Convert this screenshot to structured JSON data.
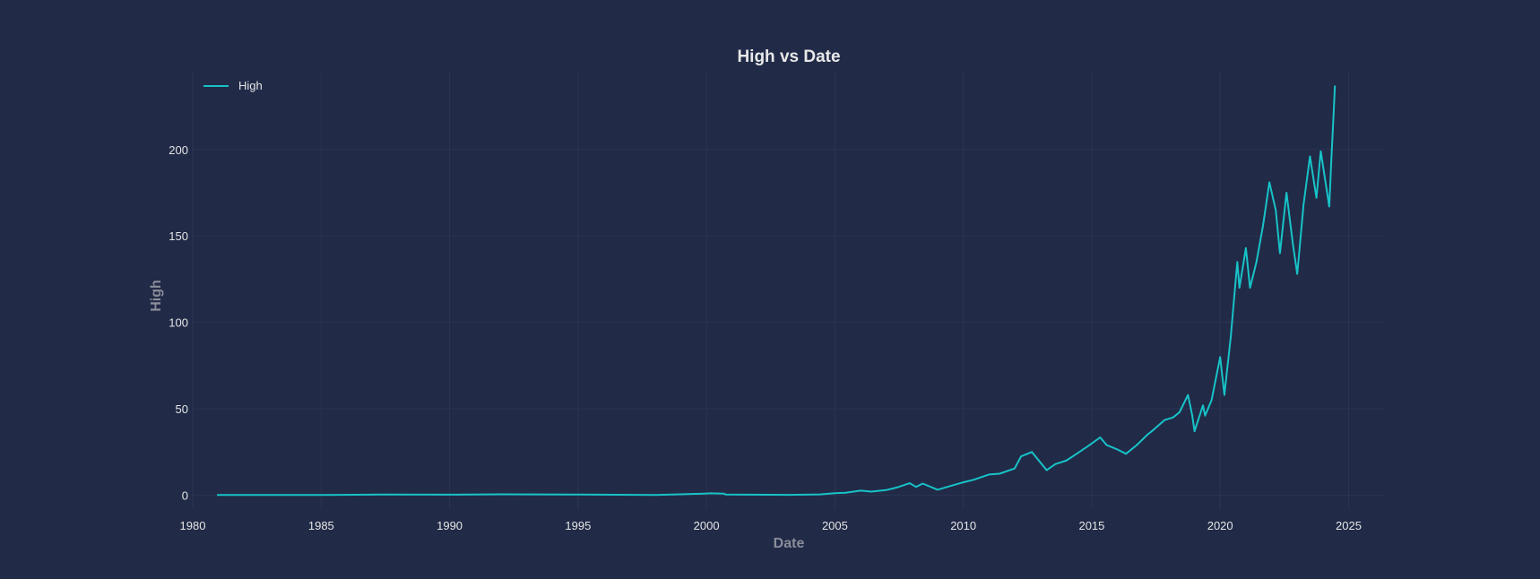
{
  "chart_data": {
    "type": "line",
    "title": "High vs Date",
    "xlabel": "Date",
    "ylabel": "High",
    "xlim": [
      "1980-01-01",
      "2026-06-01"
    ],
    "ylim": [
      -8,
      245
    ],
    "x_ticks": [
      "1980",
      "1985",
      "1990",
      "1995",
      "2000",
      "2005",
      "2010",
      "2015",
      "2020",
      "2025"
    ],
    "y_ticks": [
      0,
      50,
      100,
      150,
      200
    ],
    "grid": true,
    "legend_position": "top-left",
    "line_color": "#17c3c8",
    "series": [
      {
        "name": "High",
        "points": [
          [
            "1980-12-12",
            0.13
          ],
          [
            "1983-01-01",
            0.15
          ],
          [
            "1985-01-01",
            0.12
          ],
          [
            "1987-06-01",
            0.45
          ],
          [
            "1990-01-01",
            0.35
          ],
          [
            "1992-01-01",
            0.55
          ],
          [
            "1995-01-01",
            0.4
          ],
          [
            "1998-01-01",
            0.2
          ],
          [
            "1999-12-01",
            0.95
          ],
          [
            "2000-03-01",
            1.1
          ],
          [
            "2000-09-01",
            0.95
          ],
          [
            "2000-10-01",
            0.45
          ],
          [
            "2003-04-01",
            0.25
          ],
          [
            "2004-06-01",
            0.5
          ],
          [
            "2005-01-01",
            1.2
          ],
          [
            "2005-06-01",
            1.5
          ],
          [
            "2006-01-01",
            2.7
          ],
          [
            "2006-06-01",
            2.1
          ],
          [
            "2007-01-01",
            3.0
          ],
          [
            "2007-06-01",
            4.5
          ],
          [
            "2007-12-01",
            7.0
          ],
          [
            "2008-03-01",
            4.8
          ],
          [
            "2008-06-01",
            6.8
          ],
          [
            "2009-01-01",
            3.2
          ],
          [
            "2009-06-01",
            5.0
          ],
          [
            "2010-01-01",
            7.5
          ],
          [
            "2010-06-01",
            9.0
          ],
          [
            "2011-01-01",
            12.0
          ],
          [
            "2011-06-01",
            12.5
          ],
          [
            "2012-01-01",
            15.5
          ],
          [
            "2012-04-01",
            22.5
          ],
          [
            "2012-09-01",
            25.0
          ],
          [
            "2013-04-01",
            14.5
          ],
          [
            "2013-08-01",
            18.0
          ],
          [
            "2014-01-01",
            20.0
          ],
          [
            "2014-06-01",
            24.0
          ],
          [
            "2014-12-01",
            29.0
          ],
          [
            "2015-05-01",
            33.5
          ],
          [
            "2015-08-01",
            29.0
          ],
          [
            "2016-01-01",
            26.5
          ],
          [
            "2016-05-01",
            24.0
          ],
          [
            "2016-10-01",
            29.0
          ],
          [
            "2017-03-01",
            35.0
          ],
          [
            "2017-06-01",
            38.0
          ],
          [
            "2017-11-01",
            43.5
          ],
          [
            "2018-03-01",
            45.0
          ],
          [
            "2018-06-01",
            48.0
          ],
          [
            "2018-10-01",
            58.0
          ],
          [
            "2018-12-01",
            46.0
          ],
          [
            "2019-01-01",
            37.0
          ],
          [
            "2019-05-01",
            52.0
          ],
          [
            "2019-06-01",
            46.0
          ],
          [
            "2019-09-01",
            55.0
          ],
          [
            "2020-01-01",
            80.0
          ],
          [
            "2020-03-01",
            58.0
          ],
          [
            "2020-06-01",
            92.0
          ],
          [
            "2020-09-01",
            135.0
          ],
          [
            "2020-10-01",
            120.0
          ],
          [
            "2021-01-01",
            143.0
          ],
          [
            "2021-03-01",
            120.0
          ],
          [
            "2021-06-01",
            135.0
          ],
          [
            "2021-09-01",
            156.0
          ],
          [
            "2021-12-01",
            181.0
          ],
          [
            "2022-03-01",
            165.0
          ],
          [
            "2022-05-01",
            140.0
          ],
          [
            "2022-08-01",
            175.0
          ],
          [
            "2022-11-01",
            145.0
          ],
          [
            "2023-01-01",
            128.0
          ],
          [
            "2023-04-01",
            168.0
          ],
          [
            "2023-07-01",
            196.0
          ],
          [
            "2023-10-01",
            172.0
          ],
          [
            "2023-12-01",
            199.0
          ],
          [
            "2024-04-01",
            167.0
          ],
          [
            "2024-05-01",
            195.0
          ],
          [
            "2024-06-01",
            220.0
          ],
          [
            "2024-06-20",
            237.0
          ]
        ]
      }
    ]
  }
}
